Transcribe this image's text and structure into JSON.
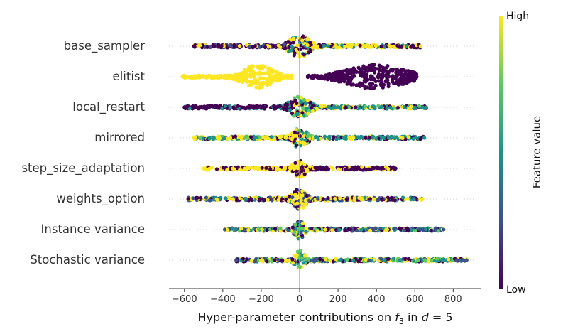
{
  "chart_data": {
    "type": "scatter",
    "subtype": "beeswarm",
    "title": "",
    "xlabel": "Hyper-parameter contributions on f_3 in d = 5",
    "xlabel_parts": {
      "prefix": "Hyper-parameter contributions on ",
      "var": "f",
      "sub": "3",
      "mid": " in ",
      "var2": "d",
      "suffix": " = 5"
    },
    "xlim": [
      -680,
      940
    ],
    "xticks": [
      -600,
      -400,
      -200,
      0,
      200,
      400,
      600,
      800
    ],
    "xtick_labels": [
      "−600",
      "−400",
      "−200",
      "0",
      "200",
      "400",
      "600",
      "800"
    ],
    "zero_line": 0,
    "colorbar": {
      "label": "Feature value",
      "high_label": "High",
      "low_label": "Low",
      "colormap": "viridis",
      "colors": [
        "#440154",
        "#3b528b",
        "#21918c",
        "#5ec962",
        "#fde725"
      ]
    },
    "features": [
      {
        "name": "base_sampler",
        "min": -550,
        "max": 630,
        "body": [
          -60,
          0,
          90,
          0.95
        ],
        "segments": [
          {
            "from": -550,
            "to": -60,
            "colors": [
              "#440154",
              "#440154",
              "#440154",
              "#3b528b",
              "#fde725"
            ]
          },
          {
            "from": -60,
            "to": 90,
            "colors": [
              "#440154",
              "#fde725",
              "#fde725",
              "#21918c",
              "#440154"
            ]
          },
          {
            "from": 90,
            "to": 630,
            "colors": [
              "#fde725",
              "#fde725",
              "#fde725",
              "#440154",
              "#21918c"
            ]
          }
        ]
      },
      {
        "name": "elitist",
        "min": -610,
        "max": 610,
        "body": [
          -330,
          -100,
          1.0,
          2,
          170,
          620,
          1.0
        ],
        "segments": [
          {
            "from": -610,
            "to": -40,
            "colors": [
              "#fde725"
            ]
          },
          {
            "from": 40,
            "to": 610,
            "colors": [
              "#440154"
            ]
          }
        ]
      },
      {
        "name": "local_restart",
        "min": -600,
        "max": 660,
        "body": [
          -60,
          0,
          90,
          0.9
        ],
        "segments": [
          {
            "from": -600,
            "to": -30,
            "colors": [
              "#440154",
              "#440154",
              "#440154",
              "#21918c"
            ]
          },
          {
            "from": -30,
            "to": 90,
            "colors": [
              "#fde725",
              "#21918c",
              "#440154",
              "#5ec962"
            ]
          },
          {
            "from": 90,
            "to": 660,
            "colors": [
              "#21918c",
              "#21918c",
              "#5ec962",
              "#fde725",
              "#440154"
            ]
          }
        ]
      },
      {
        "name": "mirrored",
        "min": -550,
        "max": 650,
        "body": [
          -30,
          0,
          80,
          0.85
        ],
        "segments": [
          {
            "from": -550,
            "to": -40,
            "colors": [
              "#fde725",
              "#fde725",
              "#440154",
              "#21918c",
              "#5ec962"
            ]
          },
          {
            "from": -40,
            "to": 80,
            "colors": [
              "#fde725",
              "#440154",
              "#21918c",
              "#5ec962"
            ]
          },
          {
            "from": 80,
            "to": 650,
            "colors": [
              "#21918c",
              "#21918c",
              "#21918c",
              "#440154",
              "#fde725"
            ]
          }
        ]
      },
      {
        "name": "step_size_adaptation",
        "min": -500,
        "max": 500,
        "body": [
          -20,
          0,
          70,
          0.75
        ],
        "segments": [
          {
            "from": -500,
            "to": -40,
            "colors": [
              "#fde725",
              "#fde725",
              "#440154",
              "#fde725"
            ]
          },
          {
            "from": -40,
            "to": 60,
            "colors": [
              "#fde725",
              "#440154",
              "#fde725"
            ]
          },
          {
            "from": 60,
            "to": 500,
            "colors": [
              "#440154",
              "#440154",
              "#fde725",
              "#440154"
            ]
          }
        ]
      },
      {
        "name": "weights_option",
        "min": -580,
        "max": 640,
        "body": [
          -30,
          0,
          80,
          0.85
        ],
        "segments": [
          {
            "from": -580,
            "to": -40,
            "colors": [
              "#440154",
              "#fde725",
              "#21918c",
              "#3b528b",
              "#fde725"
            ]
          },
          {
            "from": -40,
            "to": 80,
            "colors": [
              "#fde725",
              "#440154",
              "#fde725",
              "#3b528b"
            ]
          },
          {
            "from": 80,
            "to": 640,
            "colors": [
              "#fde725",
              "#440154",
              "#21918c",
              "#3b528b",
              "#fde725"
            ]
          }
        ]
      },
      {
        "name": "Instance variance",
        "min": -390,
        "max": 750,
        "body": [
          0,
          0,
          75,
          0.8
        ],
        "segments": [
          {
            "from": -390,
            "to": -40,
            "colors": [
              "#3b528b",
              "#5ec962",
              "#21918c",
              "#440154",
              "#fde725"
            ]
          },
          {
            "from": -40,
            "to": 60,
            "colors": [
              "#5ec962",
              "#21918c",
              "#440154",
              "#fde725",
              "#3b528b"
            ]
          },
          {
            "from": 60,
            "to": 750,
            "colors": [
              "#3b528b",
              "#21918c",
              "#5ec962",
              "#440154",
              "#fde725"
            ]
          }
        ]
      },
      {
        "name": "Stochastic variance",
        "min": -330,
        "max": 870,
        "body": [
          0,
          0,
          75,
          0.8
        ],
        "segments": [
          {
            "from": -330,
            "to": -40,
            "colors": [
              "#3b528b",
              "#440154",
              "#21918c",
              "#fde725",
              "#5ec962"
            ]
          },
          {
            "from": -40,
            "to": 60,
            "colors": [
              "#21918c",
              "#5ec962",
              "#440154",
              "#fde725"
            ]
          },
          {
            "from": 60,
            "to": 870,
            "colors": [
              "#3b528b",
              "#440154",
              "#21918c",
              "#fde725",
              "#5ec962"
            ]
          }
        ]
      }
    ]
  }
}
